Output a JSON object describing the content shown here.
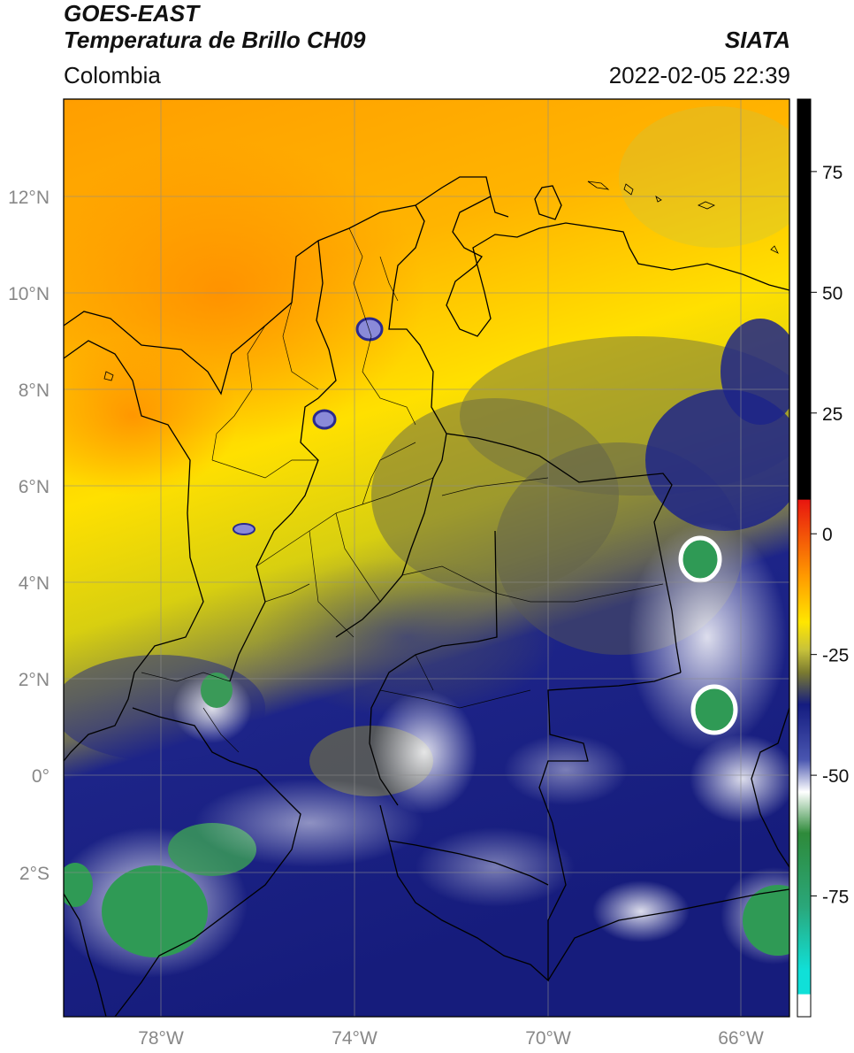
{
  "header": {
    "satellite": "GOES-EAST",
    "product": "Temperatura de Brillo CH09",
    "region": "Colombia",
    "agency": "SIATA",
    "datetime": "2022-02-05 22:39"
  },
  "map": {
    "lat_labels": [
      "12°N",
      "10°N",
      "8°N",
      "6°N",
      "4°N",
      "2°N",
      "0°",
      "2°S"
    ],
    "lat_values": [
      12,
      10,
      8,
      6,
      4,
      2,
      0,
      -2
    ],
    "lon_labels": [
      "78°W",
      "74°W",
      "70°W",
      "66°W"
    ],
    "lon_values": [
      -78,
      -74,
      -70,
      -66
    ],
    "extent": {
      "lon_min": -80,
      "lon_max": -65,
      "lat_min": -5,
      "lat_max": 14
    }
  },
  "colorbar": {
    "tick_labels": [
      "75",
      "50",
      "25",
      "0",
      "-25",
      "-50",
      "-75"
    ],
    "tick_values": [
      75,
      50,
      25,
      0,
      -25,
      -50,
      -75
    ],
    "range": [
      -100,
      90
    ],
    "colors": {
      "black": "#000000",
      "red": "#e8160f",
      "orange": "#ff9a00",
      "yellow": "#ffe600",
      "olive": "#7a7a30",
      "navy": "#141c80",
      "white": "#ffffff",
      "green": "#2e8a3a",
      "cyan": "#10e0d8"
    }
  }
}
